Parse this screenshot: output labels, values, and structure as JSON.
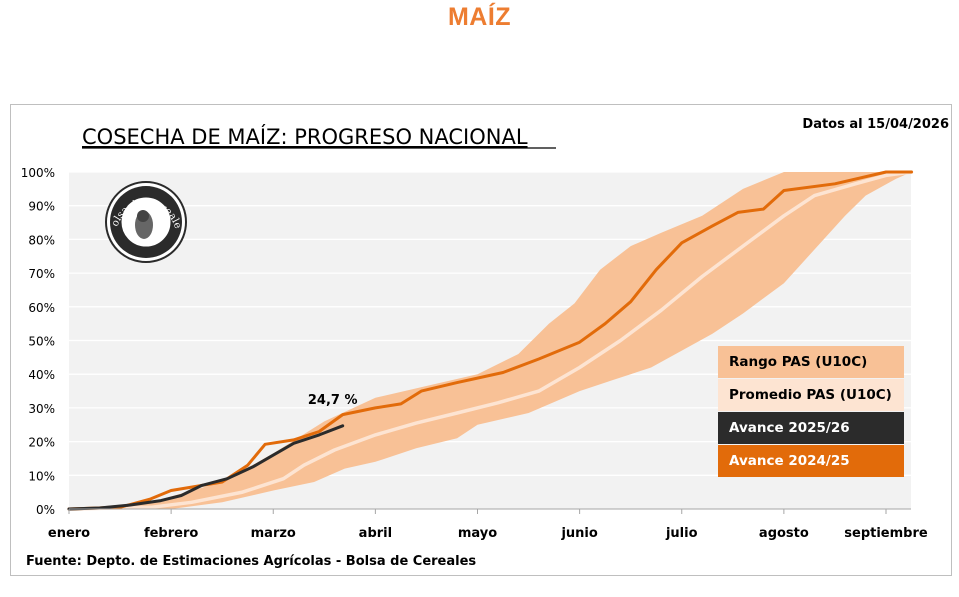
{
  "page": {
    "title": "MAÍZ"
  },
  "chart_data": {
    "type": "line",
    "title": "COSECHA DE MAÍZ: PROGRESO NACIONAL",
    "date_note": "Datos al 15/04/2026",
    "source": "Fuente: Depto. de Estimaciones Agrícolas - Bolsa de Cereales",
    "logo_text": "Bolsa de Cereales",
    "xlabel": "",
    "ylabel": "",
    "x_categories": [
      "enero",
      "febrero",
      "marzo",
      "abril",
      "mayo",
      "junio",
      "julio",
      "agosto",
      "septiembre"
    ],
    "x_range": [
      0,
      8.25
    ],
    "y_ticks": [
      "0%",
      "10%",
      "20%",
      "30%",
      "40%",
      "50%",
      "60%",
      "70%",
      "80%",
      "90%",
      "100%"
    ],
    "ylim": [
      0,
      100
    ],
    "grid": true,
    "legend_position": "bottom-right",
    "annotation": {
      "text": "24,7 %",
      "x": 2.68,
      "y": 24.7,
      "series": "Avance 2025/26"
    },
    "colors": {
      "range": "#f8c196",
      "average": "#fde4d2",
      "current": "#2b2b2b",
      "previous": "#e26b0a",
      "title_orange": "#ed7d31",
      "plot_bg": "#f2f2f2"
    },
    "series": [
      {
        "name": "Rango PAS (U10C)",
        "kind": "band",
        "upper": [
          [
            0,
            0
          ],
          [
            0.8,
            2
          ],
          [
            1.5,
            8
          ],
          [
            2.0,
            16.5
          ],
          [
            2.5,
            26
          ],
          [
            3.0,
            33
          ],
          [
            3.5,
            36.5
          ],
          [
            4.0,
            40
          ],
          [
            4.4,
            46
          ],
          [
            4.7,
            55
          ],
          [
            4.95,
            61
          ],
          [
            5.2,
            71
          ],
          [
            5.5,
            78
          ],
          [
            5.8,
            82
          ],
          [
            6.2,
            87
          ],
          [
            6.6,
            95
          ],
          [
            7.0,
            100
          ],
          [
            8.25,
            100
          ]
        ],
        "lower": [
          [
            0,
            0
          ],
          [
            1.0,
            0
          ],
          [
            1.5,
            2
          ],
          [
            2.0,
            5.5
          ],
          [
            2.4,
            8
          ],
          [
            2.7,
            12
          ],
          [
            3.0,
            14
          ],
          [
            3.4,
            18
          ],
          [
            3.8,
            21
          ],
          [
            4.0,
            25
          ],
          [
            4.5,
            28.5
          ],
          [
            5.0,
            35
          ],
          [
            5.3,
            38
          ],
          [
            5.7,
            42
          ],
          [
            6.0,
            47
          ],
          [
            6.3,
            52
          ],
          [
            6.6,
            58
          ],
          [
            7.0,
            67
          ],
          [
            7.3,
            77
          ],
          [
            7.6,
            87
          ],
          [
            7.8,
            93
          ],
          [
            8.1,
            98
          ],
          [
            8.25,
            100
          ]
        ]
      },
      {
        "name": "Promedio PAS (U10C)",
        "kind": "line",
        "points": [
          [
            0,
            0
          ],
          [
            0.8,
            0.5
          ],
          [
            1.2,
            2
          ],
          [
            1.7,
            5
          ],
          [
            2.1,
            9
          ],
          [
            2.3,
            13
          ],
          [
            2.6,
            17.5
          ],
          [
            3.0,
            22
          ],
          [
            3.4,
            25.5
          ],
          [
            3.8,
            28.5
          ],
          [
            4.2,
            31.5
          ],
          [
            4.6,
            35
          ],
          [
            5.0,
            42
          ],
          [
            5.4,
            50
          ],
          [
            5.8,
            59
          ],
          [
            6.2,
            69
          ],
          [
            6.6,
            78
          ],
          [
            7.0,
            87
          ],
          [
            7.3,
            93
          ],
          [
            7.7,
            96.5
          ],
          [
            8.0,
            99
          ],
          [
            8.25,
            100
          ]
        ]
      },
      {
        "name": "Avance 2024/25",
        "kind": "line",
        "points": [
          [
            0,
            0
          ],
          [
            0.5,
            0.5
          ],
          [
            0.8,
            3
          ],
          [
            1.0,
            5.5
          ],
          [
            1.2,
            6.5
          ],
          [
            1.5,
            8
          ],
          [
            1.75,
            13
          ],
          [
            1.92,
            19.2
          ],
          [
            2.2,
            20.5
          ],
          [
            2.45,
            23
          ],
          [
            2.68,
            28
          ],
          [
            3.0,
            30
          ],
          [
            3.25,
            31.2
          ],
          [
            3.45,
            35
          ],
          [
            3.8,
            37.5
          ],
          [
            4.25,
            40.5
          ],
          [
            4.6,
            44.5
          ],
          [
            5.0,
            49.5
          ],
          [
            5.25,
            55
          ],
          [
            5.5,
            61.5
          ],
          [
            5.75,
            71
          ],
          [
            6.0,
            79
          ],
          [
            6.3,
            84
          ],
          [
            6.55,
            88
          ],
          [
            6.8,
            89
          ],
          [
            7.0,
            94.5
          ],
          [
            7.5,
            96.5
          ],
          [
            8.0,
            100
          ],
          [
            8.25,
            100
          ]
        ]
      },
      {
        "name": "Avance 2025/26",
        "kind": "line",
        "points": [
          [
            0,
            0
          ],
          [
            0.3,
            0.3
          ],
          [
            0.6,
            1.2
          ],
          [
            0.9,
            2.5
          ],
          [
            1.1,
            4
          ],
          [
            1.3,
            7
          ],
          [
            1.55,
            9
          ],
          [
            1.8,
            12.5
          ],
          [
            2.0,
            16
          ],
          [
            2.2,
            19.5
          ],
          [
            2.45,
            22
          ],
          [
            2.68,
            24.7
          ]
        ]
      }
    ],
    "legend": [
      {
        "label": "Rango PAS (U10C)",
        "bg": "#f8c196",
        "fg": "#000000"
      },
      {
        "label": "Promedio PAS (U10C)",
        "bg": "#fde4d2",
        "fg": "#000000"
      },
      {
        "label": "Avance 2025/26",
        "bg": "#2b2b2b",
        "fg": "#ffffff"
      },
      {
        "label": "Avance 2024/25",
        "bg": "#e26b0a",
        "fg": "#ffffff"
      }
    ]
  }
}
